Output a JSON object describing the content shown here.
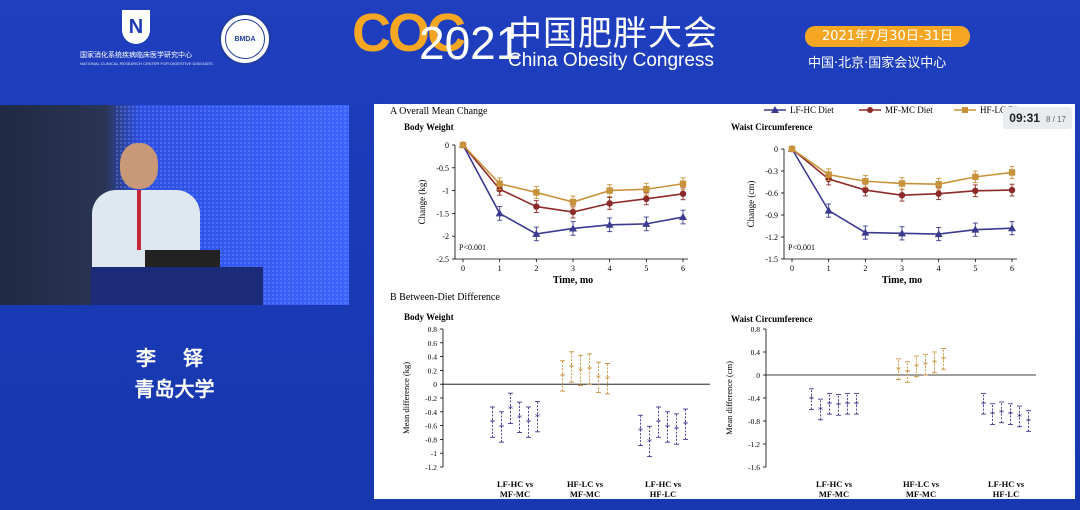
{
  "header": {
    "org_name_cn": "国家消化系统疾病临床医学研究中心",
    "org_name_en": "NATIONAL CLINICAL RESEARCH CENTER FOR DIGESTIVE DISEASES",
    "coc": "COC",
    "year": "2021",
    "title_cn": "中国肥胖大会",
    "title_en": "China Obesity Congress",
    "date": "2021年7月30日-31日",
    "venue": "中国·北京·国家会议中心",
    "seal_text": "BMDA"
  },
  "speaker": {
    "name": "李 铎",
    "affiliation": "青岛大学"
  },
  "slide": {
    "timer": "09:31",
    "page": "8 / 17",
    "legend": [
      "LF-HC Diet",
      "MF-MC Diet",
      "HF-LC Diet"
    ],
    "colors": {
      "lfhc": "#3b3a8f",
      "mfmc": "#8c2a2a",
      "hflc": "#c8923a"
    },
    "sectionA": "A   Overall Mean Change",
    "sectionB": "B   Between-Diet Difference",
    "bodyWeight": "Body Weight",
    "waist": "Waist Circumference",
    "ylabelWeight": "Change (kg)",
    "ylabelWaist": "Change (cm)",
    "xlabel": "Time, mo",
    "pvalue": "P<0.001",
    "ylabelDiffWeight": "Mean difference (kg)",
    "ylabelDiffWaist": "Mean difference (cm)",
    "groups": [
      [
        "LF-HC vs",
        "MF-MC"
      ],
      [
        "HF-LC vs",
        "MF-MC"
      ],
      [
        "LF-HC vs",
        "HF-LC"
      ]
    ]
  },
  "chart_data": [
    {
      "type": "line",
      "title": "Body Weight",
      "xlabel": "Time, mo",
      "ylabel": "Change (kg)",
      "x": [
        0,
        1,
        2,
        3,
        4,
        5,
        6
      ],
      "xlim": [
        0,
        6
      ],
      "ylim": [
        -2.5,
        0
      ],
      "yticks": [
        0,
        -0.5,
        -1,
        -1.5,
        -2,
        -2.5
      ],
      "series": [
        {
          "name": "LF-HC Diet",
          "values": [
            0,
            -1.5,
            -1.95,
            -1.83,
            -1.75,
            -1.73,
            -1.58
          ],
          "err": 0.15
        },
        {
          "name": "MF-MC Diet",
          "values": [
            0,
            -0.97,
            -1.35,
            -1.47,
            -1.28,
            -1.18,
            -1.07
          ],
          "err": 0.13
        },
        {
          "name": "HF-LC Diet",
          "values": [
            0,
            -0.85,
            -1.04,
            -1.25,
            -1.0,
            -0.97,
            -0.85
          ],
          "err": 0.13
        }
      ],
      "annotation": "P<0.001"
    },
    {
      "type": "line",
      "title": "Waist Circumference",
      "xlabel": "Time, mo",
      "ylabel": "Change (cm)",
      "x": [
        0,
        1,
        2,
        3,
        4,
        5,
        6
      ],
      "xlim": [
        0,
        6
      ],
      "ylim": [
        -1.5,
        0
      ],
      "yticks": [
        0,
        -0.3,
        -0.6,
        -0.9,
        -1.2,
        -1.5
      ],
      "series": [
        {
          "name": "LF-HC Diet",
          "values": [
            0,
            -0.84,
            -1.14,
            -1.15,
            -1.16,
            -1.1,
            -1.08
          ],
          "err": 0.09
        },
        {
          "name": "MF-MC Diet",
          "values": [
            0,
            -0.41,
            -0.56,
            -0.63,
            -0.61,
            -0.57,
            -0.56
          ],
          "err": 0.08
        },
        {
          "name": "HF-LC Diet",
          "values": [
            0,
            -0.35,
            -0.44,
            -0.47,
            -0.48,
            -0.38,
            -0.32
          ],
          "err": 0.08
        }
      ],
      "annotation": "P<0.001"
    },
    {
      "type": "scatter",
      "title": "Body Weight",
      "ylabel": "Mean difference (kg)",
      "ylim": [
        -1.2,
        0.8
      ],
      "yticks": [
        0.8,
        0.6,
        0.4,
        0.2,
        0,
        -0.2,
        -0.4,
        -0.6,
        -0.8,
        -1.0,
        -1.2
      ],
      "categories": [
        "LF-HC vs MF-MC",
        "HF-LC vs MF-MC",
        "LF-HC vs HF-LC"
      ],
      "series": [
        {
          "group": "LF-HC vs MF-MC",
          "values": [
            -0.55,
            -0.62,
            -0.35,
            -0.48,
            -0.55,
            -0.47
          ],
          "err": 0.22
        },
        {
          "group": "HF-LC vs MF-MC",
          "values": [
            0.12,
            0.25,
            0.2,
            0.22,
            0.1,
            0.08
          ],
          "err": 0.22
        },
        {
          "group": "LF-HC vs HF-LC",
          "values": [
            -0.67,
            -0.83,
            -0.55,
            -0.62,
            -0.65,
            -0.58
          ],
          "err": 0.22
        }
      ]
    },
    {
      "type": "scatter",
      "title": "Waist Circumference",
      "ylabel": "Mean difference (cm)",
      "ylim": [
        -1.6,
        0.8
      ],
      "yticks": [
        0.8,
        0.4,
        0,
        -0.4,
        -0.8,
        -1.2,
        -1.6
      ],
      "categories": [
        "LF-HC vs MF-MC",
        "HF-LC vs MF-MC",
        "LF-HC vs HF-LC"
      ],
      "series": [
        {
          "group": "LF-HC vs MF-MC",
          "values": [
            -0.42,
            -0.6,
            -0.5,
            -0.52,
            -0.5,
            -0.5
          ],
          "err": 0.18
        },
        {
          "group": "HF-LC vs MF-MC",
          "values": [
            0.1,
            0.05,
            0.15,
            0.18,
            0.22,
            0.28
          ],
          "err": 0.18
        },
        {
          "group": "LF-HC vs HF-LC",
          "values": [
            -0.5,
            -0.68,
            -0.65,
            -0.68,
            -0.72,
            -0.8
          ],
          "err": 0.18
        }
      ]
    }
  ]
}
